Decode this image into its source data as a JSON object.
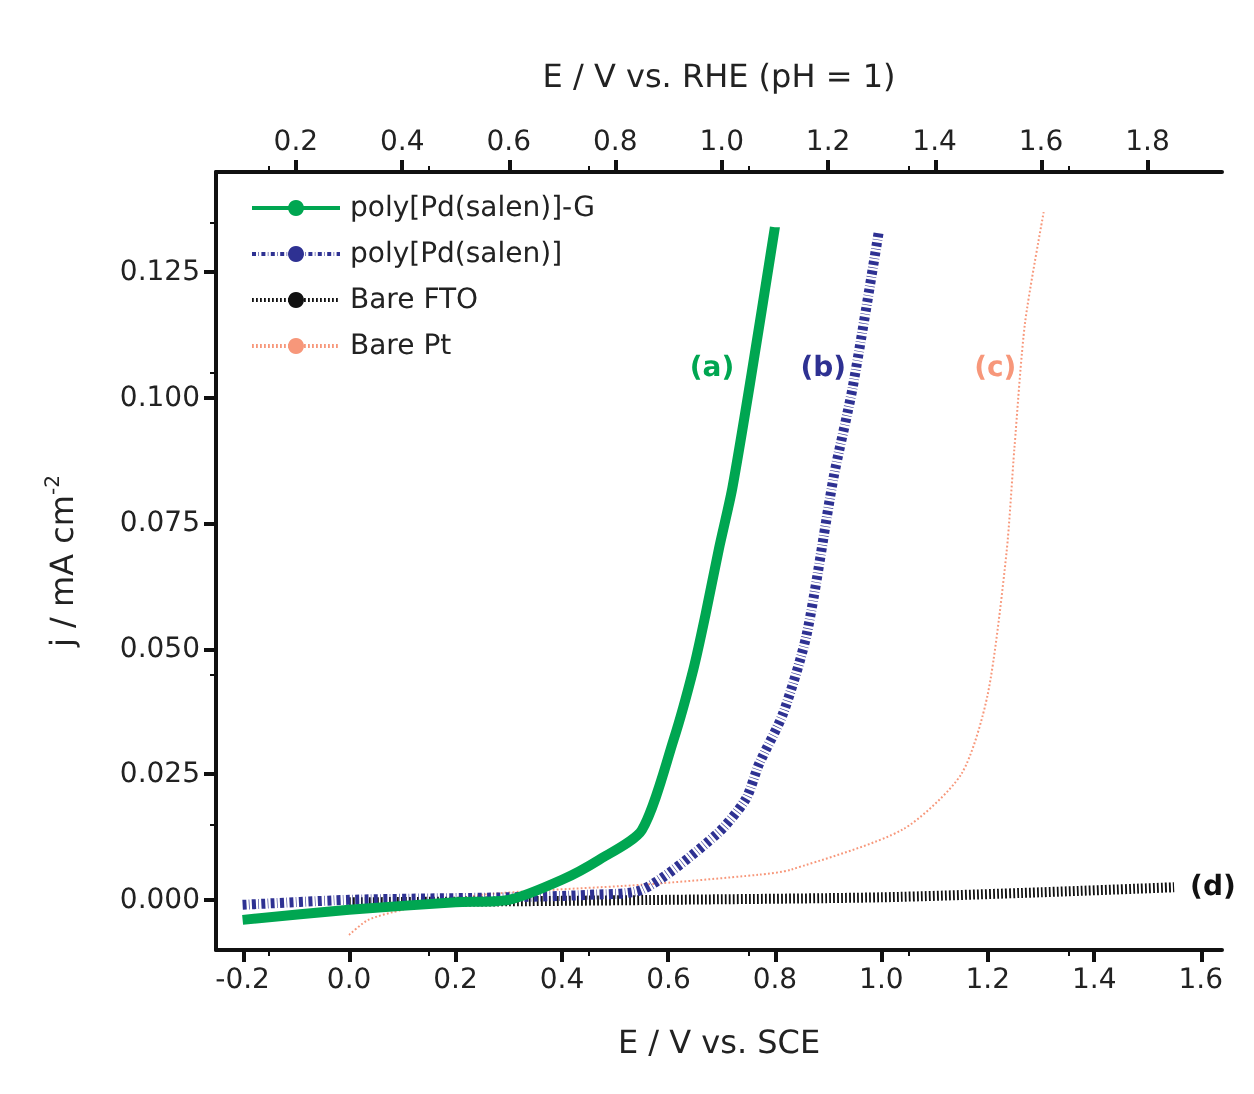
{
  "chart_data": {
    "type": "line",
    "xlabel": "E / V vs. SCE",
    "x2label": "E / V vs. RHE (pH = 1)",
    "ylabel": "j / mA cm$^{-2}$",
    "xlim": [
      -0.25,
      1.64
    ],
    "x2lim": [
      0.05,
      1.94
    ],
    "ylim": [
      -0.01,
      0.145
    ],
    "xticks": [
      -0.2,
      {
        "value": 0,
        "label": "0.0"
      },
      0.2,
      0.4,
      0.6,
      0.8,
      {
        "value": 1,
        "label": "1.0"
      },
      1.2,
      1.4,
      1.6
    ],
    "x2ticks": [
      0.2,
      0.4,
      0.6,
      0.8,
      {
        "value": 1,
        "label": "1.0"
      },
      1.2,
      1.4,
      1.6,
      1.8
    ],
    "yticks": [
      {
        "value": 0,
        "label": "0.000"
      },
      0.025,
      {
        "value": 0.05,
        "label": "0.050"
      },
      0.075,
      {
        "value": 0.1,
        "label": "0.100"
      },
      0.125
    ],
    "grid": false,
    "legend": "top left",
    "marker": "none",
    "series": [
      {
        "name": "poly[Pd(salen)]-G",
        "color": "#00a651",
        "line_style": "solid",
        "x": [
          -0.2,
          0.0,
          0.2,
          0.3,
          0.4,
          0.47,
          0.55,
          0.61,
          0.647,
          0.67,
          0.695,
          0.72,
          0.755,
          0.8
        ],
        "values": [
          -0.004,
          -0.002,
          -0.0005,
          0.0,
          0.004,
          0.008,
          0.0139,
          0.032,
          0.046,
          0.057,
          0.07,
          0.082,
          0.104,
          0.134
        ]
      },
      {
        "name": "poly[Pd(salen)]",
        "color": "#2e3192",
        "line_style": "dashed",
        "x": [
          -0.2,
          0.0,
          0.3,
          0.45,
          0.55,
          0.69,
          0.745,
          0.77,
          0.815,
          0.86,
          0.91,
          0.946,
          0.995
        ],
        "values": [
          -0.001,
          0.0,
          0.0005,
          0.001,
          0.002,
          0.013,
          0.02,
          0.027,
          0.037,
          0.053,
          0.084,
          0.102,
          0.133
        ]
      },
      {
        "name": "Bare FTO",
        "color": "#111111",
        "line_style": "dotted",
        "x": [
          0.0,
          0.3,
          0.6,
          1.0,
          1.3,
          1.55
        ],
        "values": [
          -0.0005,
          -0.0003,
          0.0,
          0.0005,
          0.0015,
          0.0025
        ]
      },
      {
        "name": "Bare Pt",
        "color": "#f7977a",
        "line_style": "dotted",
        "x": [
          0.0,
          0.036,
          0.1,
          0.25,
          0.55,
          0.77,
          0.83,
          1.04,
          1.15,
          1.2,
          1.235,
          1.25,
          1.27,
          1.305
        ],
        "values": [
          -0.007,
          -0.004,
          -0.002,
          0.001,
          0.003,
          0.005,
          0.006,
          0.014,
          0.025,
          0.041,
          0.069,
          0.09,
          0.115,
          0.137
        ]
      }
    ],
    "annotations": [
      {
        "text": "(a)",
        "x": 0.75,
        "y": 0.106
      },
      {
        "text": "(b)",
        "x": 0.96,
        "y": 0.106
      },
      {
        "text": "(c)",
        "x": 1.28,
        "y": 0.106
      },
      {
        "text": "(d)",
        "x": 1.55,
        "y": 0.0025
      }
    ]
  }
}
